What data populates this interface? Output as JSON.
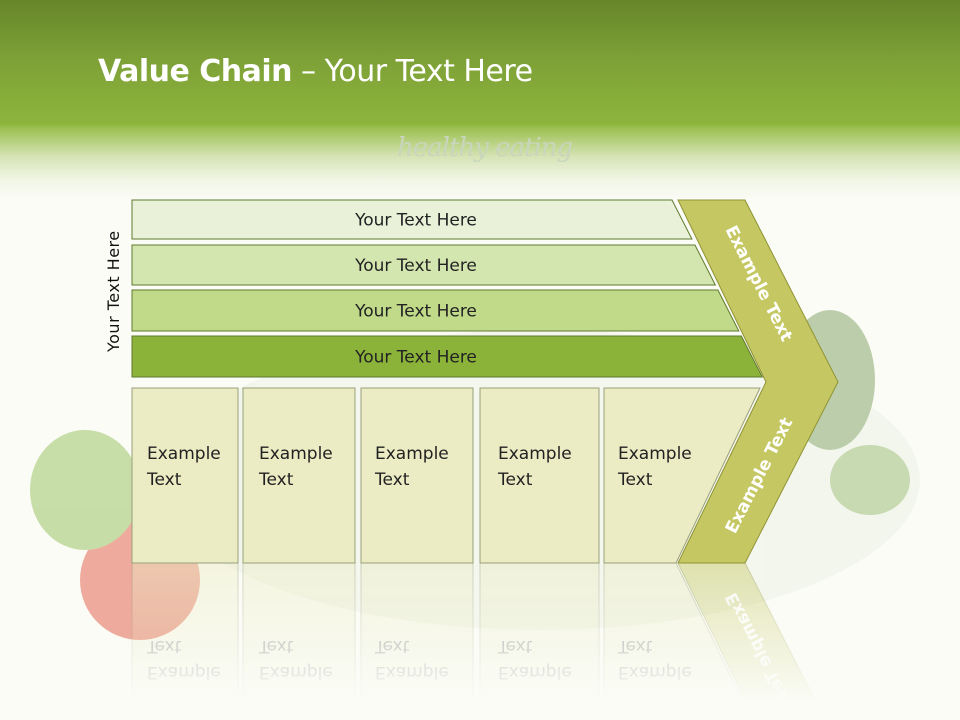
{
  "slide": {
    "title_bold": "Value Chain",
    "title_rest": " – Your Text Here",
    "tagline": "healthy eating",
    "side_label": "Your Text Here"
  },
  "bands": [
    {
      "label": "Your Text Here",
      "color": "#e9f2d8"
    },
    {
      "label": "Your Text Here",
      "color": "#d4e6b0"
    },
    {
      "label": "Your Text Here",
      "color": "#c0da8a"
    },
    {
      "label": "Your Text Here",
      "color": "#8bb33a"
    }
  ],
  "boxes": [
    {
      "line1": "Example",
      "line2": "Text"
    },
    {
      "line1": "Example",
      "line2": "Text"
    },
    {
      "line1": "Example",
      "line2": "Text"
    },
    {
      "line1": "Example",
      "line2": "Text"
    },
    {
      "line1": "Example",
      "line2": "Text"
    }
  ],
  "chevron": {
    "upper_label": "Example Text",
    "lower_label": "Example Text",
    "color": "#c5c862"
  },
  "colors": {
    "box_fill": "#ebebc4",
    "header_green": "#8db53c"
  }
}
